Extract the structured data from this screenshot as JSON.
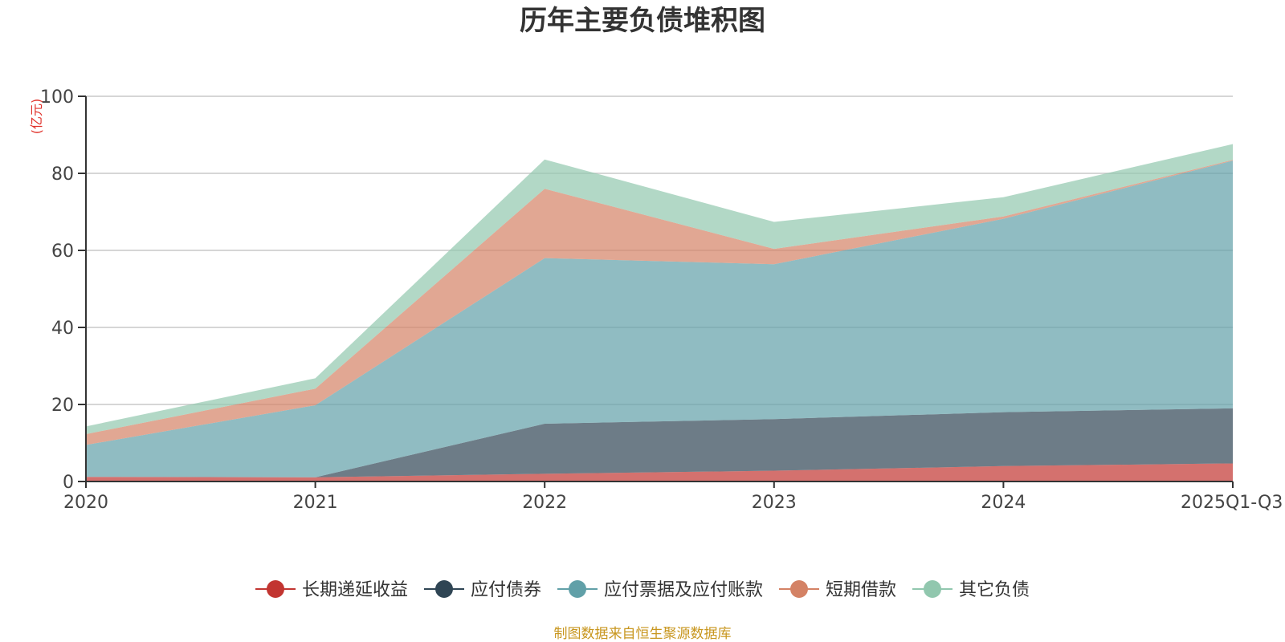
{
  "chart_data": {
    "type": "area",
    "stacked": true,
    "title": "历年主要负债堆积图",
    "unit_label": "(亿元)",
    "categories": [
      "2020",
      "2021",
      "2022",
      "2023",
      "2024",
      "2025Q1-Q3"
    ],
    "ylim": [
      0,
      100
    ],
    "yticks": [
      0,
      20,
      40,
      60,
      80,
      100
    ],
    "grid": true,
    "legend_position": "bottom-center",
    "series": [
      {
        "name": "长期递延收益",
        "values": [
          1.2,
          1.1,
          2.0,
          2.8,
          4.0,
          4.7
        ],
        "color": "#c23531"
      },
      {
        "name": "应付债券",
        "values": [
          0,
          0,
          13.0,
          13.4,
          14.0,
          14.3
        ],
        "color": "#2f4554"
      },
      {
        "name": "应付票据及应付账款",
        "values": [
          8.3,
          18.7,
          43.0,
          40.2,
          50.2,
          64.3
        ],
        "color": "#61a0a8"
      },
      {
        "name": "短期借款",
        "values": [
          2.8,
          4.3,
          18.0,
          4.0,
          0.6,
          0.2
        ],
        "color": "#d48265"
      },
      {
        "name": "其它负债",
        "values": [
          2.0,
          2.7,
          7.6,
          7.0,
          5.0,
          4.1
        ],
        "color": "#91c7ae"
      }
    ],
    "source_note": "制图数据来自恒生聚源数据库"
  }
}
